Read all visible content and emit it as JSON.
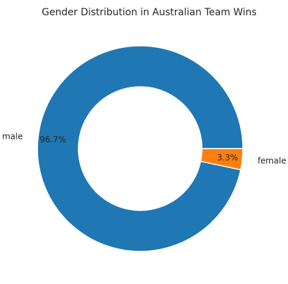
{
  "chart_data": {
    "type": "pie",
    "style": "donut",
    "title": "Gender Distribution in Australian Team Wins",
    "categories": [
      "male",
      "female"
    ],
    "values": [
      96.7,
      3.3
    ],
    "value_labels": [
      "96.7%",
      "3.3%"
    ],
    "colors": [
      "#1f77b4",
      "#ff7f0e"
    ],
    "start_angle_deg": 0,
    "direction": "counterclockwise"
  }
}
